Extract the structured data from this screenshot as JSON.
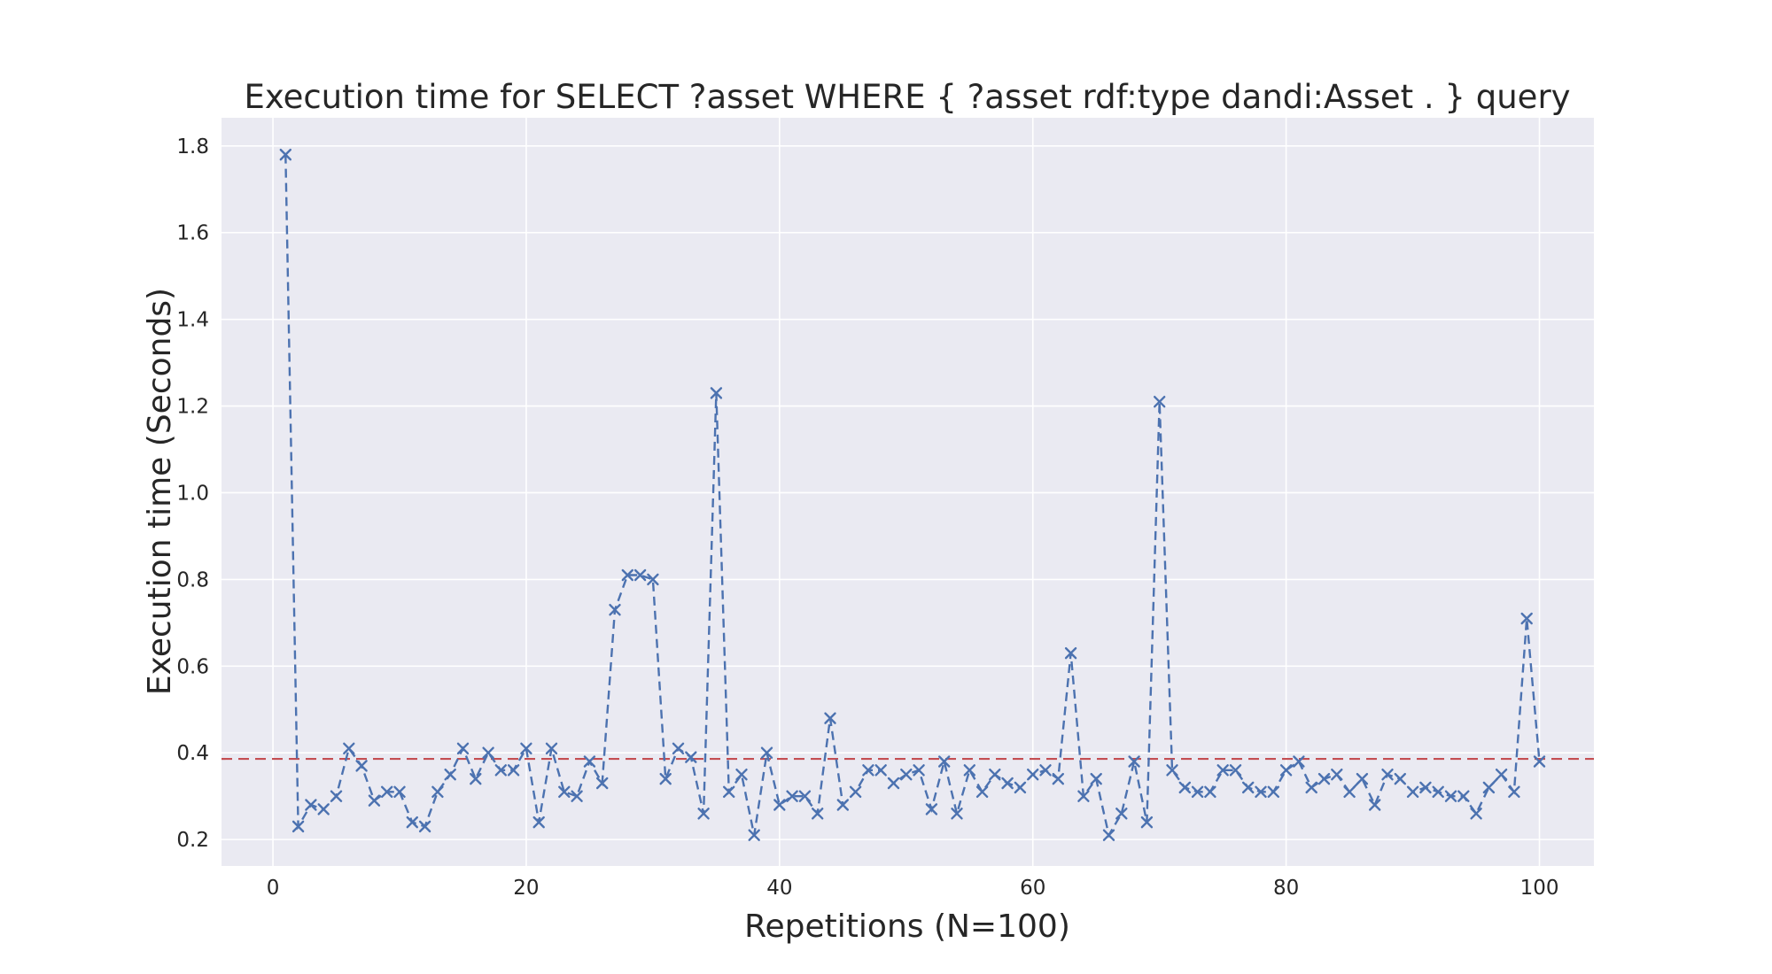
{
  "chart_data": {
    "type": "line",
    "title": "Execution time for SELECT ?asset WHERE { ?asset rdf:type dandi:Asset . } query",
    "xlabel": "Repetitions (N=100)",
    "ylabel": "Execution time (Seconds)",
    "x_start": 1,
    "values": [
      1.78,
      0.23,
      0.28,
      0.27,
      0.3,
      0.41,
      0.37,
      0.29,
      0.31,
      0.31,
      0.24,
      0.23,
      0.31,
      0.35,
      0.41,
      0.34,
      0.4,
      0.36,
      0.36,
      0.41,
      0.24,
      0.41,
      0.31,
      0.3,
      0.38,
      0.33,
      0.73,
      0.81,
      0.81,
      0.8,
      0.34,
      0.41,
      0.39,
      0.26,
      1.23,
      0.31,
      0.35,
      0.21,
      0.4,
      0.28,
      0.3,
      0.3,
      0.26,
      0.48,
      0.28,
      0.31,
      0.36,
      0.36,
      0.33,
      0.35,
      0.36,
      0.27,
      0.38,
      0.26,
      0.36,
      0.31,
      0.35,
      0.33,
      0.32,
      0.35,
      0.36,
      0.34,
      0.63,
      0.3,
      0.34,
      0.21,
      0.26,
      0.38,
      0.24,
      1.21,
      0.36,
      0.32,
      0.31,
      0.31,
      0.36,
      0.36,
      0.32,
      0.31,
      0.31,
      0.36,
      0.38,
      0.32,
      0.34,
      0.35,
      0.31,
      0.34,
      0.28,
      0.35,
      0.34,
      0.31,
      0.32,
      0.31,
      0.3,
      0.3,
      0.26,
      0.32,
      0.35,
      0.31,
      0.71,
      0.38
    ],
    "mean_line_value": 0.386,
    "xticks": [
      0,
      20,
      40,
      60,
      80,
      100
    ],
    "yticks": [
      0.2,
      0.4,
      0.6,
      0.8,
      1.0,
      1.2,
      1.4,
      1.6,
      1.8
    ],
    "xlim": [
      -4.06,
      104.3
    ],
    "ylim": [
      0.139,
      1.865
    ],
    "grid": true,
    "legend_position": "none",
    "line_style": "dashed",
    "marker": "x",
    "colors": {
      "line": "#4c72b0",
      "mean_line": "#c44e52",
      "plot_background": "#eaeaf2",
      "gridline": "#ffffff",
      "text": "#262626",
      "figure_background": "#ffffff"
    }
  }
}
